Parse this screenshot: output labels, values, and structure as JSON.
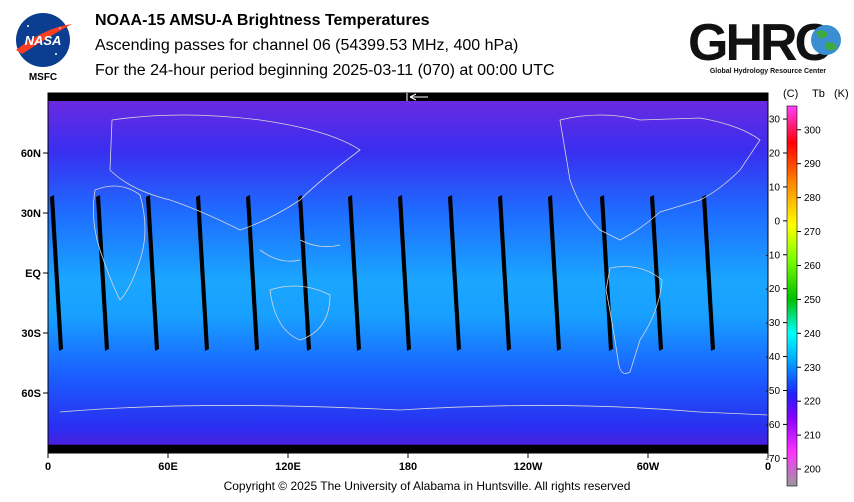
{
  "header": {
    "title": "NOAA-15 AMSU-A Brightness Temperatures",
    "subtitle1": "Ascending passes for channel 06 (54399.53 MHz, 400 hPa)",
    "subtitle2": "For the 24-hour period beginning 2025-03-11 (070) at 00:00 UTC"
  },
  "logos": {
    "left": {
      "text": "NASA",
      "caption": "MSFC",
      "icon": "nasa-meatball-logo"
    },
    "right": {
      "text": "GHRC",
      "caption": "Global Hydrology Resource Center",
      "icon": "ghrc-globe-logo"
    }
  },
  "footer": {
    "copyright": "Copyright © 2025 The University of Alabama in Huntsville.  All rights reserved"
  },
  "orbit_direction_icon": "left-arrow-icon",
  "chart_data": {
    "type": "heatmap",
    "title": "NOAA-15 AMSU-A Brightness Temperatures",
    "projection": "equirectangular",
    "x_ticks": [
      "0",
      "60E",
      "120E",
      "180",
      "120W",
      "60W",
      "0"
    ],
    "x_tick_values": [
      0,
      60,
      120,
      180,
      240,
      300,
      360
    ],
    "y_ticks": [
      "60N",
      "30N",
      "EQ",
      "30S",
      "60S"
    ],
    "y_tick_values": [
      60,
      30,
      0,
      -30,
      -60
    ],
    "xlim": [
      0,
      360
    ],
    "ylim": [
      -90,
      90
    ],
    "swath_gaps_start_lon": [
      0,
      23,
      48,
      73,
      98,
      124,
      149,
      174,
      199,
      224,
      249,
      275,
      300,
      326
    ],
    "colorbar": {
      "header_c": "(C)",
      "header_tb": "Tb",
      "header_k": "(K)",
      "celsius_ticks": [
        "30",
        "20",
        "10",
        "0",
        "-10",
        "-20",
        "-30",
        "-40",
        "-50",
        "-60",
        "-70"
      ],
      "celsius_values": [
        30,
        20,
        10,
        0,
        -10,
        -20,
        -30,
        -40,
        -50,
        -60,
        -70
      ],
      "kelvin_ticks": [
        "300",
        "290",
        "280",
        "270",
        "260",
        "250",
        "240",
        "230",
        "220",
        "210",
        "200"
      ],
      "kelvin_values": [
        300,
        290,
        280,
        270,
        260,
        250,
        240,
        230,
        220,
        210,
        200
      ],
      "range_k": [
        195,
        307
      ],
      "stops": [
        {
          "k": 195,
          "color": "#9a9a9a"
        },
        {
          "k": 205,
          "color": "#ff33ff"
        },
        {
          "k": 215,
          "color": "#8a00ff"
        },
        {
          "k": 222,
          "color": "#2020ff"
        },
        {
          "k": 232,
          "color": "#00a8ff"
        },
        {
          "k": 240,
          "color": "#00ffff"
        },
        {
          "k": 250,
          "color": "#00c000"
        },
        {
          "k": 262,
          "color": "#80ff00"
        },
        {
          "k": 272,
          "color": "#ffff00"
        },
        {
          "k": 285,
          "color": "#ff8000"
        },
        {
          "k": 296,
          "color": "#ff0000"
        },
        {
          "k": 307,
          "color": "#ff40ff"
        }
      ]
    }
  }
}
